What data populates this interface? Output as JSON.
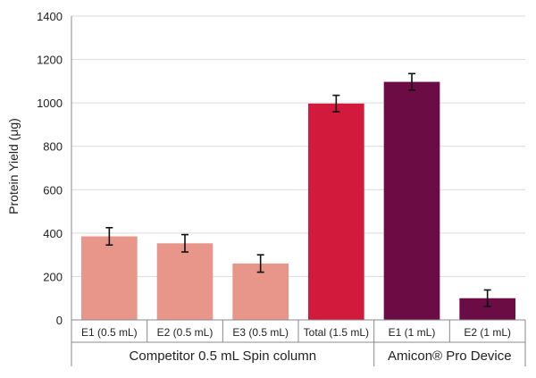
{
  "chart_data": {
    "type": "bar",
    "ylabel": "Protein Yield (μg)",
    "ylim": [
      0,
      1400
    ],
    "y_ticks": [
      0,
      200,
      400,
      600,
      800,
      1000,
      1200,
      1400
    ],
    "grid": true,
    "categories": [
      "E1 (0.5 mL)",
      "E2 (0.5 mL)",
      "E3 (0.5 mL)",
      "Total (1.5 mL)",
      "E1 (1 mL)",
      "E2 (1 mL)"
    ],
    "values": [
      385,
      353,
      260,
      997,
      1097,
      100
    ],
    "errors": [
      40,
      40,
      40,
      38,
      38,
      38
    ],
    "colors": [
      "#e8968a",
      "#e8968a",
      "#e8968a",
      "#d21a3c",
      "#6b0c45",
      "#6b0c45"
    ],
    "groups": [
      {
        "label": "Competitor 0.5 mL Spin column",
        "start": 0,
        "end": 3
      },
      {
        "label": "Amicon® Pro Device",
        "start": 4,
        "end": 5
      }
    ]
  }
}
